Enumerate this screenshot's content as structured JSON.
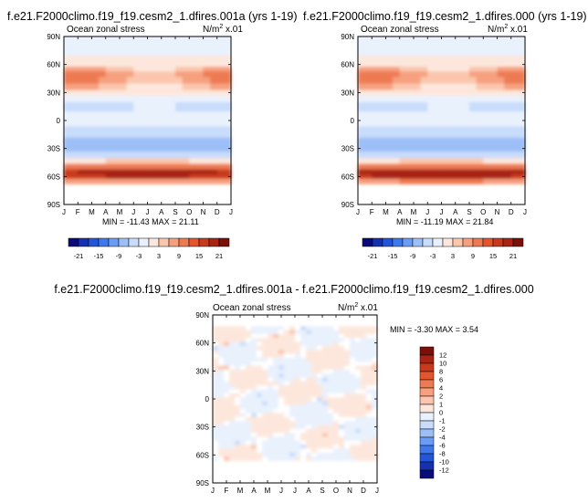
{
  "months": [
    "J",
    "F",
    "M",
    "A",
    "M",
    "J",
    "J",
    "A",
    "S",
    "O",
    "N",
    "D",
    "J"
  ],
  "lat_ticks": [
    "90N",
    "60N",
    "30N",
    "0",
    "30S",
    "60S",
    "90S"
  ],
  "chart_data": [
    {
      "type": "heatmap",
      "title": "f.e21.F2000climo.f19_f19.cesm2_1.dfires.001a (yrs 1-19)",
      "left_label": "Ocean zonal stress",
      "right_label_main": "N/m",
      "right_label_sup": "2",
      "right_label_tail": " x.01",
      "min_max": "MIN = -11.43 MAX =  21.11",
      "x_categories": [
        "J",
        "F",
        "M",
        "A",
        "M",
        "J",
        "J",
        "A",
        "S",
        "O",
        "N",
        "D",
        "J"
      ],
      "y_ticks": [
        "90N",
        "60N",
        "30N",
        "0",
        "30S",
        "60S",
        "90S"
      ],
      "levels": [
        "-21",
        "-15",
        "-9",
        "-3",
        "3",
        "9",
        "15",
        "21"
      ],
      "colorbar": [
        "#0a0a7a",
        "#1530b0",
        "#2255d8",
        "#3e78ee",
        "#6b9cf5",
        "#9dbff8",
        "#c8dcfb",
        "#e9f1fd",
        "#fde7dc",
        "#fbc6ad",
        "#f6a07f",
        "#ee7a52",
        "#e2552f",
        "#c93a1c",
        "#a82414",
        "#7a1008"
      ],
      "zonal_profile": [
        {
          "lat": -90,
          "v": null
        },
        {
          "lat": -72,
          "v": null
        },
        {
          "lat": -68,
          "v": 1
        },
        {
          "lat": -62,
          "v": 13
        },
        {
          "lat": -57,
          "v": 20
        },
        {
          "lat": -52,
          "v": 15
        },
        {
          "lat": -46,
          "v": 4
        },
        {
          "lat": -40,
          "v": -1
        },
        {
          "lat": -33,
          "v": -5
        },
        {
          "lat": -25,
          "v": -7
        },
        {
          "lat": -18,
          "v": -6
        },
        {
          "lat": -12,
          "v": -5
        },
        {
          "lat": -6,
          "v": -3
        },
        {
          "lat": 0,
          "v": -1
        },
        {
          "lat": 5,
          "v": 0
        },
        {
          "lat": 10,
          "v": -3
        },
        {
          "lat": 14,
          "v": -5
        },
        {
          "lat": 20,
          "v": -3
        },
        {
          "lat": 27,
          "v": 0
        },
        {
          "lat": 33,
          "v": 3
        },
        {
          "lat": 40,
          "v": 6
        },
        {
          "lat": 47,
          "v": 9
        },
        {
          "lat": 53,
          "v": 7
        },
        {
          "lat": 58,
          "v": 3
        },
        {
          "lat": 63,
          "v": 1
        },
        {
          "lat": 70,
          "v": 0
        },
        {
          "lat": 78,
          "v": 0
        },
        {
          "lat": 90,
          "v": 0
        }
      ]
    },
    {
      "type": "heatmap",
      "title": "f.e21.F2000climo.f19_f19.cesm2_1.dfires.000 (yrs 1-19)",
      "left_label": "Ocean zonal stress",
      "right_label_main": "N/m",
      "right_label_sup": "2",
      "right_label_tail": " x.01",
      "min_max": "MIN = -11.19 MAX =  21.84",
      "x_categories": [
        "J",
        "F",
        "M",
        "A",
        "M",
        "J",
        "J",
        "A",
        "S",
        "O",
        "N",
        "D",
        "J"
      ],
      "y_ticks": [
        "90N",
        "60N",
        "30N",
        "0",
        "30S",
        "60S",
        "90S"
      ],
      "levels": [
        "-21",
        "-15",
        "-9",
        "-3",
        "3",
        "9",
        "15",
        "21"
      ],
      "colorbar": [
        "#0a0a7a",
        "#1530b0",
        "#2255d8",
        "#3e78ee",
        "#6b9cf5",
        "#9dbff8",
        "#c8dcfb",
        "#e9f1fd",
        "#fde7dc",
        "#fbc6ad",
        "#f6a07f",
        "#ee7a52",
        "#e2552f",
        "#c93a1c",
        "#a82414",
        "#7a1008"
      ],
      "zonal_profile": [
        {
          "lat": -90,
          "v": null
        },
        {
          "lat": -72,
          "v": null
        },
        {
          "lat": -68,
          "v": 1
        },
        {
          "lat": -62,
          "v": 14
        },
        {
          "lat": -57,
          "v": 21
        },
        {
          "lat": -52,
          "v": 15
        },
        {
          "lat": -46,
          "v": 4
        },
        {
          "lat": -40,
          "v": -1
        },
        {
          "lat": -33,
          "v": -5
        },
        {
          "lat": -25,
          "v": -7
        },
        {
          "lat": -18,
          "v": -6
        },
        {
          "lat": -12,
          "v": -5
        },
        {
          "lat": -6,
          "v": -3
        },
        {
          "lat": 0,
          "v": -1
        },
        {
          "lat": 5,
          "v": 0
        },
        {
          "lat": 10,
          "v": -3
        },
        {
          "lat": 14,
          "v": -5
        },
        {
          "lat": 20,
          "v": -3
        },
        {
          "lat": 27,
          "v": 0
        },
        {
          "lat": 33,
          "v": 3
        },
        {
          "lat": 40,
          "v": 6
        },
        {
          "lat": 47,
          "v": 9
        },
        {
          "lat": 53,
          "v": 7
        },
        {
          "lat": 58,
          "v": 3
        },
        {
          "lat": 63,
          "v": 1
        },
        {
          "lat": 70,
          "v": 0
        },
        {
          "lat": 78,
          "v": 0
        },
        {
          "lat": 90,
          "v": 0
        }
      ]
    },
    {
      "type": "heatmap",
      "title": "f.e21.F2000climo.f19_f19.cesm2_1.dfires.001a - f.e21.F2000climo.f19_f19.cesm2_1.dfires.000",
      "left_label": "Ocean zonal stress",
      "right_label_main": "N/m",
      "right_label_sup": "2",
      "right_label_tail": " x.01",
      "min_max": "MIN = -3.30 MAX =  3.54",
      "x_categories": [
        "J",
        "F",
        "M",
        "A",
        "M",
        "J",
        "J",
        "A",
        "S",
        "O",
        "N",
        "D",
        "J"
      ],
      "y_ticks": [
        "90N",
        "60N",
        "30N",
        "0",
        "30S",
        "60S",
        "90S"
      ],
      "levels": [
        "12",
        "10",
        "8",
        "6",
        "4",
        "2",
        "1",
        "0",
        "-1",
        "-2",
        "-4",
        "-6",
        "-8",
        "-10",
        "-12"
      ],
      "colorbar": [
        "#7a1008",
        "#a82414",
        "#c93a1c",
        "#e2552f",
        "#ee7a52",
        "#f6a07f",
        "#fbc6ad",
        "#fde7dc",
        "#e9f1fd",
        "#c8dcfb",
        "#9dbff8",
        "#6b9cf5",
        "#3e78ee",
        "#2255d8",
        "#1530b0",
        "#0a0a7a"
      ]
    }
  ]
}
